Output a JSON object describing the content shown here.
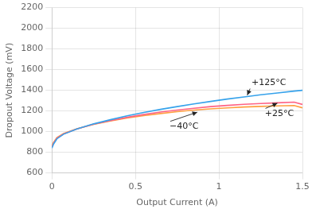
{
  "chart_data": {
    "type": "line",
    "x_label": "Output Current (A)",
    "y_label": "Dropout Voltage (mV)",
    "x": [
      0.0,
      0.01,
      0.03,
      0.07,
      0.15,
      0.25,
      0.35,
      0.45,
      0.55,
      0.65,
      0.75,
      0.85,
      0.95,
      1.05,
      1.15,
      1.25,
      1.35,
      1.45,
      1.5
    ],
    "series": [
      {
        "values": [
          840,
          880,
          930,
          975,
          1025,
          1075,
          1115,
          1152,
          1185,
          1215,
          1242,
          1268,
          1292,
          1315,
          1336,
          1356,
          1374,
          1392,
          1400
        ]
      },
      {
        "values": [
          852,
          888,
          936,
          978,
          1026,
          1072,
          1107,
          1138,
          1165,
          1189,
          1209,
          1226,
          1242,
          1254,
          1264,
          1272,
          1279,
          1285,
          1263
        ]
      },
      {
        "values": [
          862,
          896,
          942,
          982,
          1028,
          1070,
          1103,
          1131,
          1155,
          1175,
          1193,
          1208,
          1220,
          1230,
          1238,
          1244,
          1249,
          1253,
          1230
        ]
      }
    ],
    "annotations": [
      {
        "text": "+125°C",
        "x": 1.17,
        "y": 1353,
        "text_x": 1.19,
        "text_y": 1430
      },
      {
        "text": "+25°C",
        "x": 1.35,
        "y": 1275,
        "text_x": 1.27,
        "text_y": 1218
      },
      {
        "text": "−40°C",
        "x": 0.87,
        "y": 1188,
        "text_x": 0.7,
        "text_y": 1095
      }
    ],
    "xlim": [
      0,
      1.5
    ],
    "ylim": [
      600,
      2200
    ],
    "xticks": [
      0,
      0.5,
      1.0,
      1.5
    ],
    "yticks": [
      600,
      800,
      1000,
      1200,
      1400,
      1600,
      1800,
      2000,
      2200
    ],
    "grid": true
  }
}
